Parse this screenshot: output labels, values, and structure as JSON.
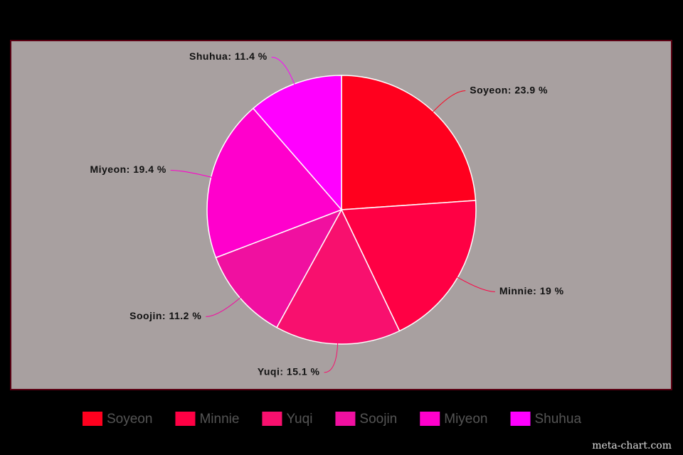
{
  "chart_data": {
    "type": "pie",
    "categories": [
      "Soyeon",
      "Minnie",
      "Yuqi",
      "Soojin",
      "Miyeon",
      "Shuhua"
    ],
    "values": [
      23.9,
      19,
      15.1,
      11.2,
      19.4,
      11.4
    ],
    "value_labels": [
      "Soyeon: 23.9 %",
      "Minnie: 19 %",
      "Yuqi: 15.1 %",
      "Soojin: 11.2 %",
      "Miyeon: 19.4 %",
      "Shuhua: 11.4 %"
    ],
    "colors": [
      "#ff001e",
      "#ff0044",
      "#f8106e",
      "#f010a0",
      "#ff00cc",
      "#ff00ff"
    ],
    "legend": "bottom",
    "watermark": "meta-chart.com"
  }
}
